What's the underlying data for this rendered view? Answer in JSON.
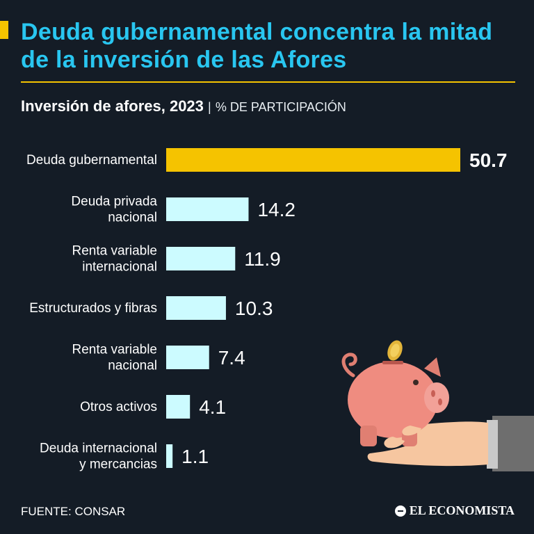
{
  "headline": "Deuda gubernamental concentra la mitad de la inversión de las Afores",
  "subtitle": {
    "main": "Inversión de afores, 2023",
    "separator": "|",
    "unit": "% DE PARTICIPACIÓN"
  },
  "colors": {
    "background": "#141c26",
    "headline": "#29c6f0",
    "accent": "#f5c300",
    "bar_default": "#ccfbff",
    "bar_highlight": "#f5c300"
  },
  "chart_data": {
    "type": "bar",
    "orientation": "horizontal",
    "title": "Inversión de afores, 2023",
    "unit": "% DE PARTICIPACIÓN",
    "categories": [
      [
        "Deuda gubernamental"
      ],
      [
        "Deuda privada",
        "nacional"
      ],
      [
        "Renta variable",
        "internacional"
      ],
      [
        "Estructurados y fibras"
      ],
      [
        "Renta variable",
        "nacional"
      ],
      [
        "Otros activos"
      ],
      [
        "Deuda internacional",
        "y mercancias"
      ]
    ],
    "values": [
      50.7,
      14.2,
      11.9,
      10.3,
      7.4,
      4.1,
      1.1
    ],
    "highlight_index": 0,
    "xlim": [
      0,
      50.7
    ],
    "grid": false,
    "legend": "none"
  },
  "illustration": {
    "name": "piggy-bank-in-hand"
  },
  "footer": {
    "source": "FUENTE: CONSAR",
    "brand": "EL ECONOMISTA"
  }
}
